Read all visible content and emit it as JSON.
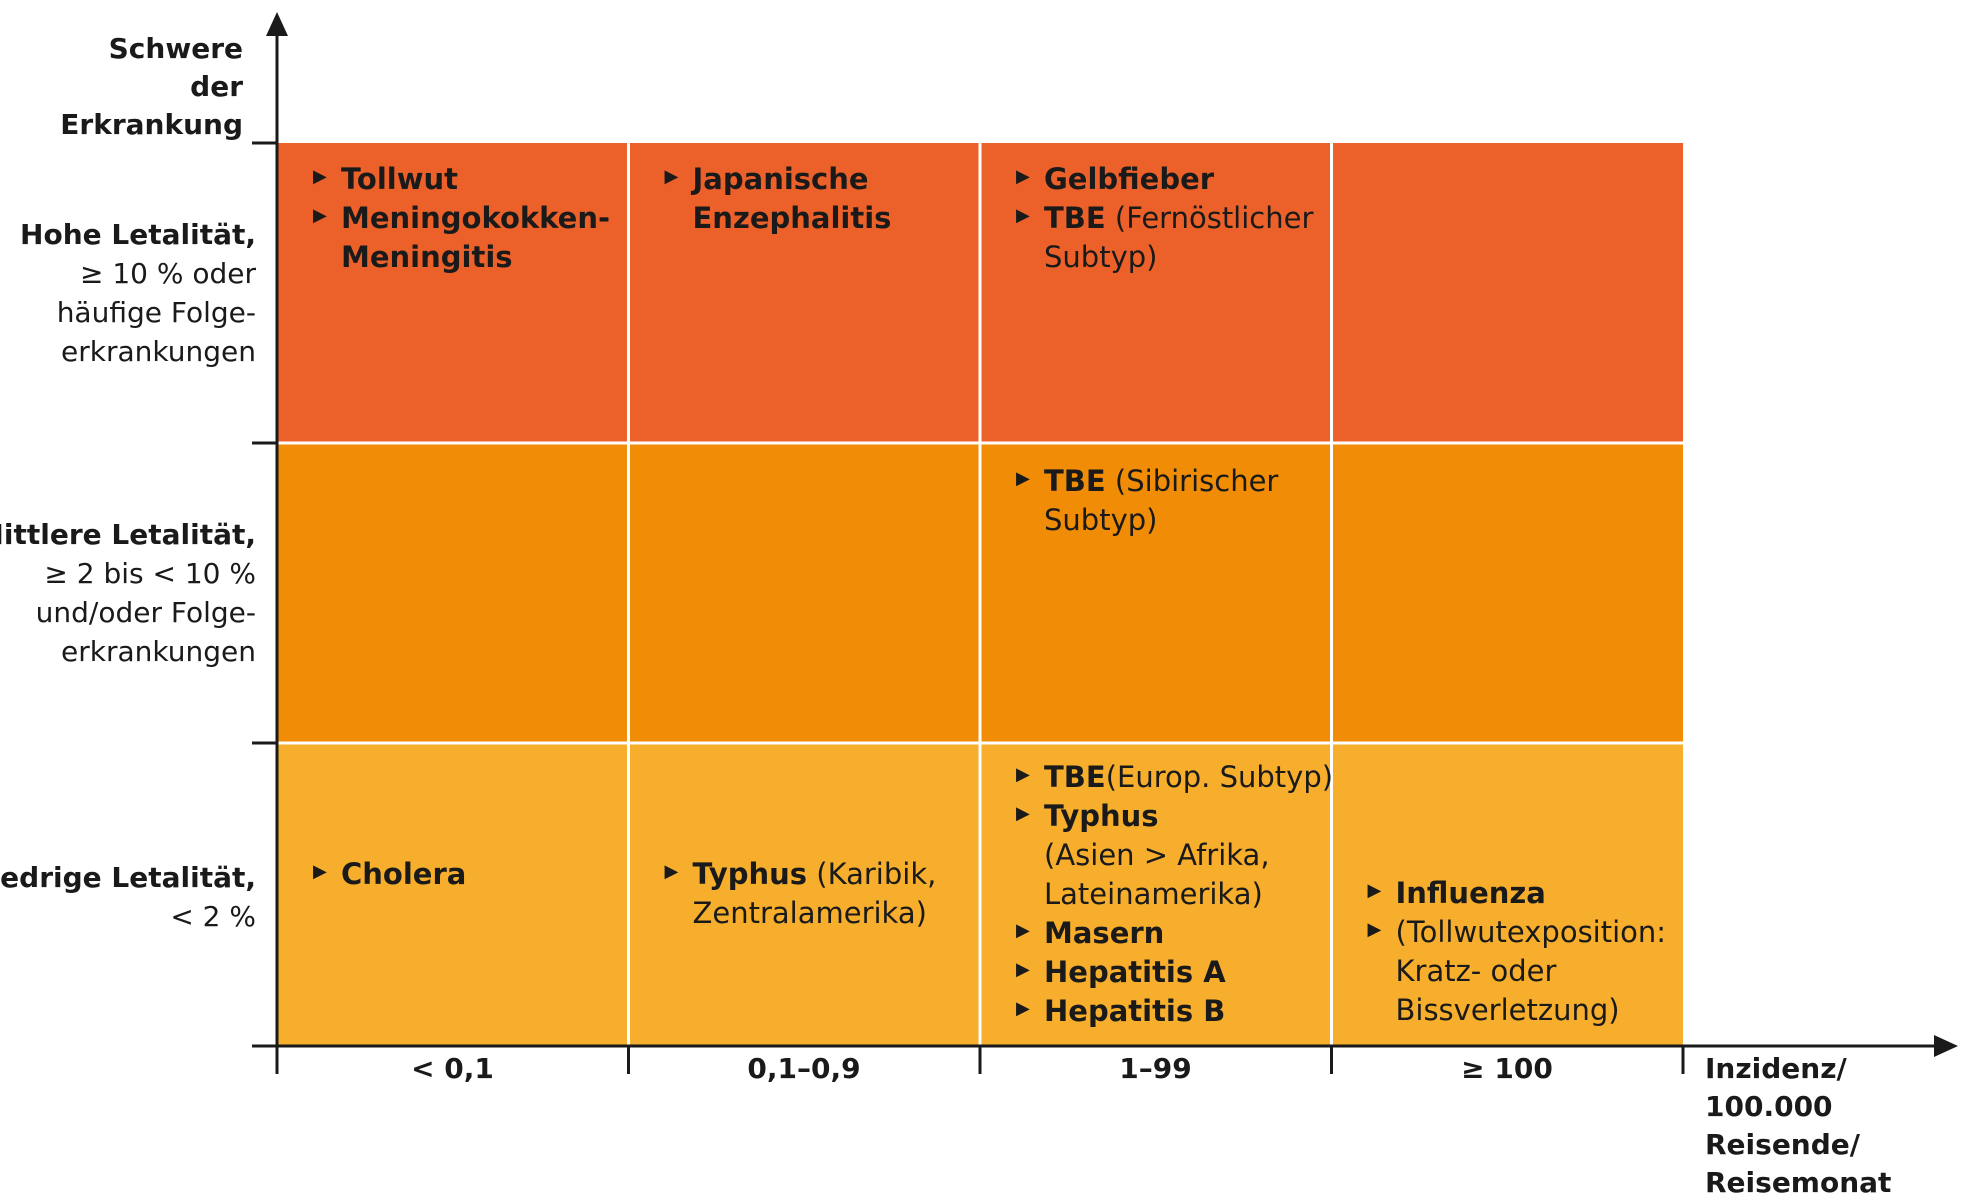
{
  "y_axis_title": [
    "Schwere",
    "der Erkrankung"
  ],
  "x_axis_title": [
    "Inzidenz/",
    "100.000 Reisende/",
    "Reisemonat"
  ],
  "columns": [
    "< 0,1",
    "0,1–0,9",
    "1–99",
    "≥ 100"
  ],
  "rows": [
    {
      "label_bold": "Hohe Letalität,",
      "label_lines": [
        "≥ 10 % oder",
        "häufige Folge-",
        "erkrankungen"
      ],
      "color": "#EC612A"
    },
    {
      "label_bold": "Mittlere Letalität,",
      "label_lines": [
        "≥ 2 bis < 10 %",
        "und/oder Folge-",
        "erkrankungen"
      ],
      "color": "#F08C06"
    },
    {
      "label_bold": "Niedrige Letalität,",
      "label_lines": [
        "< 2 %"
      ],
      "color": "#F6AE2C"
    }
  ],
  "cells": {
    "r0c0": [
      {
        "bold": "Tollwut",
        "rest": []
      },
      {
        "bold": "Meningokokken-",
        "rest": [
          "Meningitis"
        ],
        "rest_bold": true
      }
    ],
    "r0c1": [
      {
        "bold": "Japanische",
        "rest": [
          "Enzephalitis"
        ],
        "rest_bold": true
      }
    ],
    "r0c2": [
      {
        "bold": "Gelbfieber",
        "rest": []
      },
      {
        "bold": "TBE",
        "inline": " (Fernöstlicher",
        "rest": [
          "Subtyp)"
        ]
      }
    ],
    "r0c3": [],
    "r1c0": [],
    "r1c1": [],
    "r1c2": [
      {
        "bold": "TBE",
        "inline": " (Sibirischer",
        "rest": [
          "Subtyp)"
        ]
      }
    ],
    "r1c3": [],
    "r2c0": [
      {
        "bold": "Cholera",
        "rest": []
      }
    ],
    "r2c1": [
      {
        "bold": "Typhus",
        "inline": " (Karibik,",
        "rest": [
          "Zentralamerika)"
        ]
      }
    ],
    "r2c2": [
      {
        "bold": "TBE",
        "inline": "(Europ. Subtyp)",
        "rest": []
      },
      {
        "bold": "Typhus",
        "rest": [
          "(Asien > Afrika,",
          "Lateinamerika)"
        ]
      },
      {
        "bold": "Masern",
        "rest": []
      },
      {
        "bold": "Hepatitis A",
        "rest": []
      },
      {
        "bold": "Hepatitis B",
        "rest": []
      }
    ],
    "r2c3": [
      {
        "bold": "Influenza",
        "rest": []
      },
      {
        "bold": "",
        "inline": "(Tollwutexposition:",
        "rest": [
          "Kratz- oder",
          "Bissverletzung)"
        ]
      }
    ]
  },
  "colors": {
    "axis": "#1a1a1a",
    "grid": "#ffffff"
  }
}
